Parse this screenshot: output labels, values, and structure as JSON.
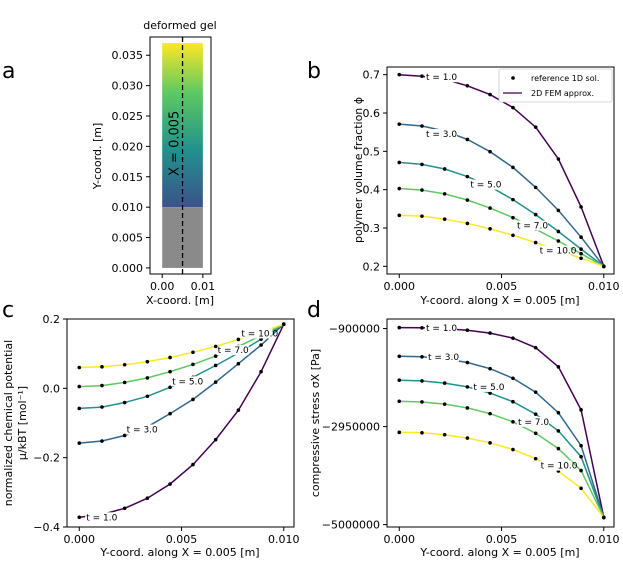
{
  "chart_data": [
    {
      "id": "a",
      "type": "heatmap",
      "panel_letter": "a",
      "title": "deformed gel",
      "xlabel": "X-coord. [m]",
      "ylabel": "Y-coord. [m]",
      "xlim": [
        -0.003,
        0.012
      ],
      "ylim": [
        -0.001,
        0.038
      ],
      "gel_x_range": [
        0.0,
        0.01
      ],
      "gel_y_range": [
        0.0,
        0.037
      ],
      "gray_y_range": [
        0.0,
        0.01
      ],
      "xticks": [
        0.0,
        0.01
      ],
      "xtick_labels": [
        "0.00",
        "0.01"
      ],
      "yticks": [
        0.0,
        0.005,
        0.01,
        0.015,
        0.02,
        0.025,
        0.03,
        0.035
      ],
      "ytick_labels": [
        "0.000",
        "0.005",
        "0.010",
        "0.015",
        "0.020",
        "0.025",
        "0.030",
        "0.035"
      ],
      "cut_line_x": 0.005,
      "cut_label": "X = 0.005",
      "colors": {
        "bottom": "#3b528b",
        "mid": "#21918c",
        "upper": "#5ec962",
        "top": "#fde725",
        "gray": "#8a8a8a"
      }
    },
    {
      "id": "b",
      "type": "line",
      "panel_letter": "b",
      "xlabel": "Y-coord. along X = 0.005 [m]",
      "ylabel": "polymer volume fraction ϕ",
      "xlim": [
        -0.0006,
        0.0105
      ],
      "ylim": [
        0.18,
        0.72
      ],
      "xticks": [
        0.0,
        0.005,
        0.01
      ],
      "xtick_labels": [
        "0.000",
        "0.005",
        "0.010"
      ],
      "yticks": [
        0.2,
        0.3,
        0.4,
        0.5,
        0.6,
        0.7
      ],
      "ytick_labels": [
        "0.2",
        "0.3",
        "0.4",
        "0.5",
        "0.6",
        "0.7"
      ],
      "legend": {
        "placement": "top-right",
        "entries": [
          "reference 1D sol.",
          "2D FEM approx."
        ]
      },
      "x": [
        0.0,
        0.00111,
        0.00222,
        0.00333,
        0.00444,
        0.00556,
        0.00667,
        0.00778,
        0.00889,
        0.01
      ],
      "series": [
        {
          "name": "t = 1.0",
          "color": "#440154",
          "values": [
            0.7,
            0.696,
            0.688,
            0.671,
            0.648,
            0.614,
            0.563,
            0.48,
            0.355,
            0.2
          ]
        },
        {
          "name": "t = 3.0",
          "color": "#31688e",
          "values": [
            0.571,
            0.566,
            0.553,
            0.531,
            0.499,
            0.458,
            0.406,
            0.346,
            0.276,
            0.2
          ]
        },
        {
          "name": "t = 5.0",
          "color": "#21918c",
          "values": [
            0.471,
            0.466,
            0.454,
            0.434,
            0.408,
            0.374,
            0.335,
            0.291,
            0.245,
            0.2
          ]
        },
        {
          "name": "t = 7.0",
          "color": "#5ec962",
          "values": [
            0.403,
            0.399,
            0.389,
            0.373,
            0.352,
            0.327,
            0.297,
            0.266,
            0.233,
            0.2
          ]
        },
        {
          "name": "t = 10.0",
          "color": "#fde725",
          "values": [
            0.333,
            0.331,
            0.323,
            0.312,
            0.298,
            0.281,
            0.262,
            0.242,
            0.221,
            0.2
          ]
        }
      ],
      "curve_labels": [
        "t = 1.0",
        "t = 3.0",
        "t = 5.0",
        "t = 7.0",
        "t = 10.0"
      ]
    },
    {
      "id": "c",
      "type": "line",
      "panel_letter": "c",
      "xlabel": "Y-coord. along X = 0.005 [m]",
      "ylabel_line1": "normalized chemical potential",
      "ylabel_line2": "μ/kBT [mol⁻¹]",
      "xlim": [
        -0.0006,
        0.0105
      ],
      "ylim": [
        -0.4,
        0.2
      ],
      "xticks": [
        0.0,
        0.005,
        0.01
      ],
      "xtick_labels": [
        "0.000",
        "0.005",
        "0.010"
      ],
      "yticks": [
        -0.4,
        -0.2,
        0.0,
        0.2
      ],
      "ytick_labels": [
        "−0.4",
        "−0.2",
        "0.0",
        "0.2"
      ],
      "x": [
        0.0,
        0.00111,
        0.00222,
        0.00333,
        0.00444,
        0.00556,
        0.00667,
        0.00778,
        0.00889,
        0.01
      ],
      "series": [
        {
          "name": "t = 1.0",
          "color": "#440154",
          "values": [
            -0.372,
            -0.364,
            -0.346,
            -0.317,
            -0.276,
            -0.22,
            -0.148,
            -0.063,
            0.048,
            0.185
          ]
        },
        {
          "name": "t = 3.0",
          "color": "#31688e",
          "values": [
            -0.158,
            -0.152,
            -0.136,
            -0.111,
            -0.073,
            -0.032,
            0.018,
            0.071,
            0.125,
            0.185
          ]
        },
        {
          "name": "t = 5.0",
          "color": "#21918c",
          "values": [
            -0.058,
            -0.054,
            -0.041,
            -0.023,
            0.003,
            0.032,
            0.066,
            0.102,
            0.142,
            0.185
          ]
        },
        {
          "name": "t = 7.0",
          "color": "#5ec962",
          "values": [
            0.005,
            0.008,
            0.017,
            0.03,
            0.048,
            0.069,
            0.093,
            0.121,
            0.152,
            0.185
          ]
        },
        {
          "name": "t = 10.0",
          "color": "#fde725",
          "values": [
            0.06,
            0.062,
            0.068,
            0.077,
            0.089,
            0.104,
            0.121,
            0.141,
            0.162,
            0.185
          ]
        }
      ],
      "curve_labels": [
        "t = 1.0",
        "t = 3.0",
        "t = 5.0",
        "t = 7.0",
        "t = 10.0"
      ]
    },
    {
      "id": "d",
      "type": "line",
      "panel_letter": "d",
      "xlabel": "Y-coord. along X = 0.005 [m]",
      "ylabel": "compressive stress σX [Pa]",
      "xlim": [
        -0.0006,
        0.0105
      ],
      "ylim": [
        -5050000,
        -700000
      ],
      "xticks": [
        0.0,
        0.005,
        0.01
      ],
      "xtick_labels": [
        "0.000",
        "0.005",
        "0.010"
      ],
      "yticks": [
        -900000,
        -2950000,
        -5000000
      ],
      "ytick_labels": [
        "−900000",
        "−2950000",
        "−5000000"
      ],
      "x": [
        0.0,
        0.00111,
        0.00222,
        0.00333,
        0.00444,
        0.00556,
        0.00667,
        0.00778,
        0.00889,
        0.01
      ],
      "series": [
        {
          "name": "t = 1.0",
          "color": "#440154",
          "values": [
            -880000,
            -885000,
            -900000,
            -935000,
            -995000,
            -1100000,
            -1300000,
            -1700000,
            -2600000,
            -4850000
          ]
        },
        {
          "name": "t = 3.0",
          "color": "#31688e",
          "values": [
            -1480000,
            -1490000,
            -1530000,
            -1610000,
            -1740000,
            -1940000,
            -2230000,
            -2660000,
            -3350000,
            -4850000
          ]
        },
        {
          "name": "t = 5.0",
          "color": "#21918c",
          "values": [
            -1980000,
            -1995000,
            -2040000,
            -2120000,
            -2250000,
            -2430000,
            -2690000,
            -3040000,
            -3580000,
            -4850000
          ]
        },
        {
          "name": "t = 7.0",
          "color": "#5ec962",
          "values": [
            -2420000,
            -2435000,
            -2480000,
            -2560000,
            -2680000,
            -2850000,
            -3090000,
            -3410000,
            -3870000,
            -4850000
          ]
        },
        {
          "name": "t = 10.0",
          "color": "#fde725",
          "values": [
            -3070000,
            -3080000,
            -3120000,
            -3190000,
            -3290000,
            -3430000,
            -3620000,
            -3880000,
            -4240000,
            -4850000
          ]
        }
      ],
      "curve_labels": [
        "t = 1.0",
        "t = 3.0",
        "t = 5.0",
        "t = 7.0",
        "t = 10.0"
      ]
    }
  ]
}
